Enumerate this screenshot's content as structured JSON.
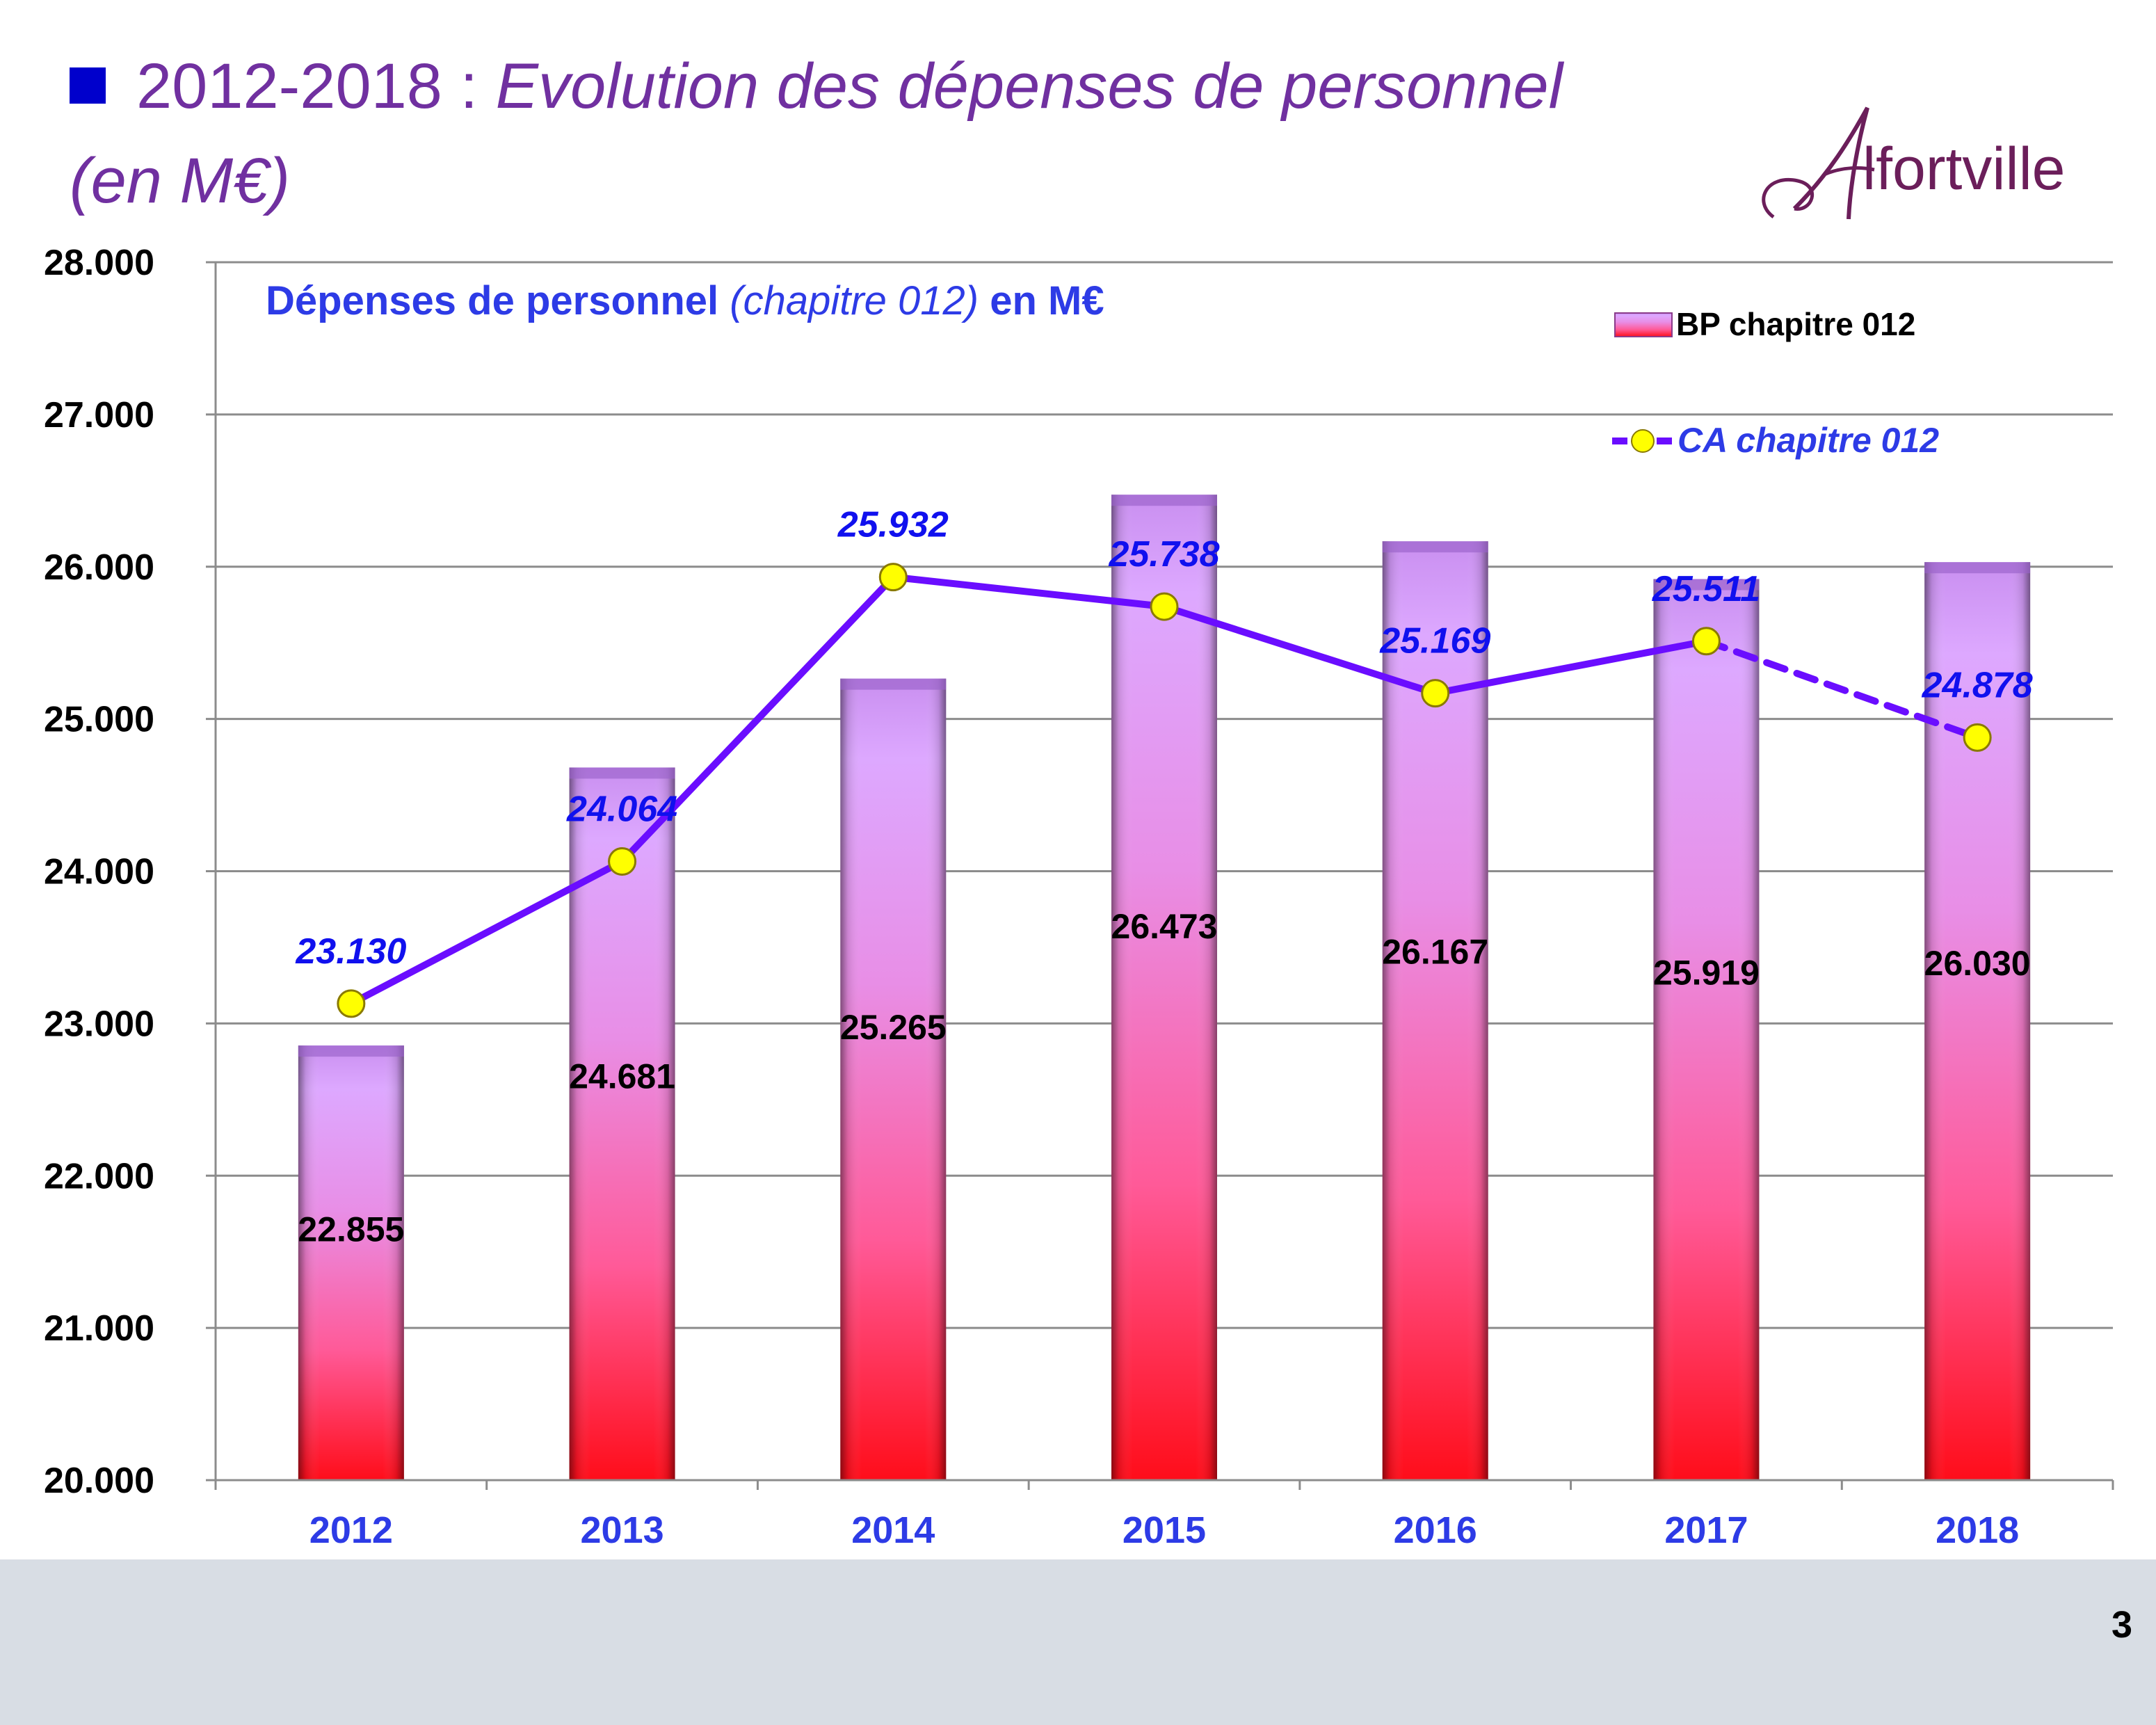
{
  "slide": {
    "title_prefix": "2012-2018 : ",
    "title_italic": "Evolution des dépenses de personnel",
    "subtitle": "(en M€)",
    "logo_text": "Alfortville",
    "page_number": "3"
  },
  "colors": {
    "title": "#7030a0",
    "bullet": "#0000cc",
    "bar_top": "#d8a4ff",
    "bar_bottom": "#ff1020",
    "line": "#6a0dff",
    "marker": "#ffff00",
    "line_labels": "#1010ee",
    "axis_labels": "#2d3be6",
    "footer": "#d8dde4"
  },
  "chart_data": {
    "type": "bar",
    "title_bold": "Dépenses de personnel",
    "title_italic": "(chapitre 012)",
    "title_suffix": "en M€",
    "categories": [
      "2012",
      "2013",
      "2014",
      "2015",
      "2016",
      "2017",
      "2018"
    ],
    "y_tick_labels": [
      "20.000",
      "21.000",
      "22.000",
      "23.000",
      "24.000",
      "25.000",
      "26.000",
      "27.000",
      "28.000"
    ],
    "ylim": [
      20,
      28
    ],
    "grid": true,
    "legend_position": "top-right",
    "series": [
      {
        "name": "BP chapitre 012",
        "type": "bar",
        "values": [
          22.855,
          24.681,
          25.265,
          26.473,
          26.167,
          25.919,
          26.03
        ],
        "labels": [
          "22.855",
          "24.681",
          "25.265",
          "26.473",
          "26.167",
          "25.919",
          "26.030"
        ]
      },
      {
        "name": "CA chapitre 012",
        "type": "line",
        "values": [
          23.13,
          24.064,
          25.932,
          25.738,
          25.169,
          25.511,
          24.878
        ],
        "labels": [
          "23.130",
          "24.064",
          "25.932",
          "25.738",
          "25.169",
          "25.511",
          "24.878"
        ],
        "dashed_last_segment": true
      }
    ]
  }
}
